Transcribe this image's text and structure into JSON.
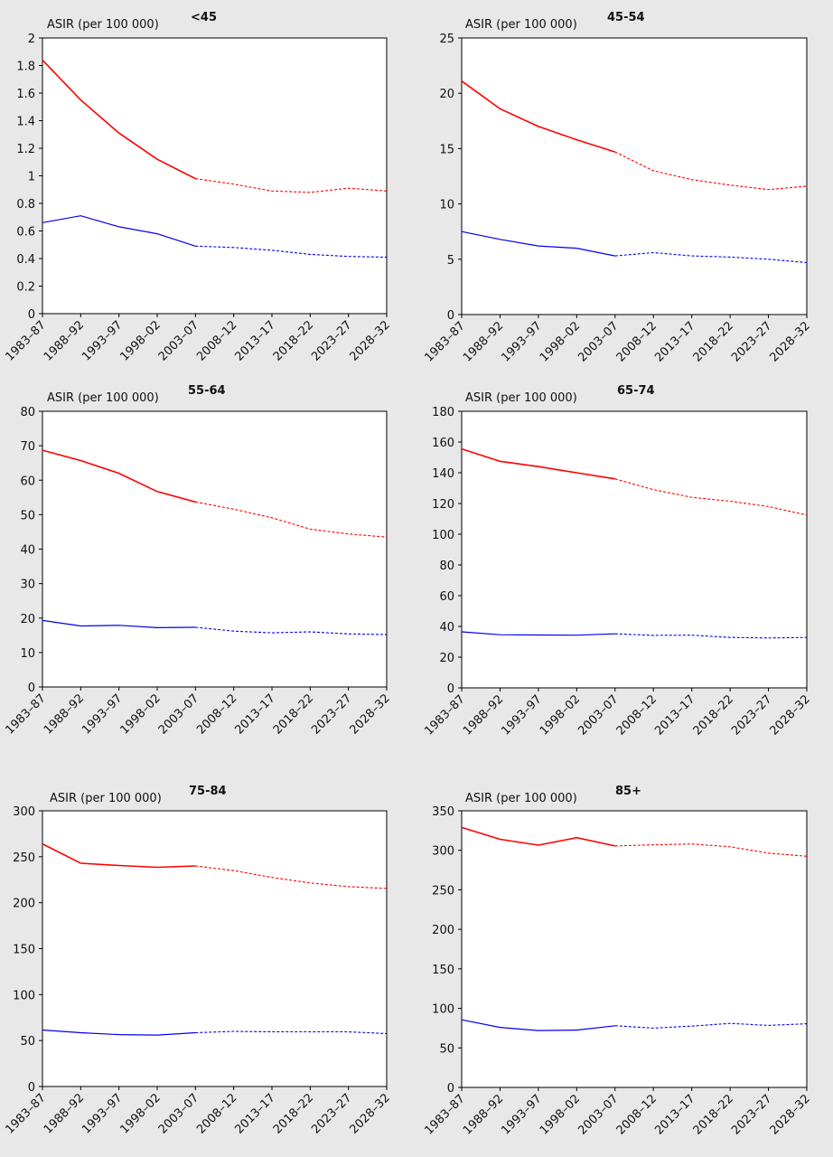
{
  "figure": {
    "background": "#e8e8e8",
    "plot_background": "#ffffff"
  },
  "chart_data": [
    {
      "type": "line",
      "title": "<45",
      "ylabel": "ASIR (per 100 000)",
      "xlabel": "",
      "categories": [
        "1983–87",
        "1988–92",
        "1993–97",
        "1998–02",
        "2003–07",
        "2008–12",
        "2013–17",
        "2018–22",
        "2023–27",
        "2028–32"
      ],
      "ylim": [
        0,
        2
      ],
      "yticks": [
        0,
        0.2,
        0.4,
        0.6,
        0.8,
        1,
        1.2,
        1.4,
        1.6,
        1.8,
        2
      ],
      "yticklabels": [
        "0",
        "0.2",
        "0.4",
        "0.6",
        "0.8",
        "1",
        "1.2",
        "1.4",
        "1.6",
        "1.8",
        "2"
      ],
      "projection_start_index": 4,
      "series": [
        {
          "name": "red",
          "color": "#ff0000",
          "values": [
            1.84,
            1.55,
            1.31,
            1.12,
            0.98,
            0.94,
            0.89,
            0.88,
            0.91,
            0.89
          ]
        },
        {
          "name": "blue",
          "color": "#0000ee",
          "values": [
            0.66,
            0.71,
            0.63,
            0.58,
            0.49,
            0.48,
            0.46,
            0.43,
            0.415,
            0.41
          ]
        }
      ]
    },
    {
      "type": "line",
      "title": "45-54",
      "ylabel": "ASIR (per 100 000)",
      "xlabel": "",
      "categories": [
        "1983–87",
        "1988–92",
        "1993–97",
        "1998–02",
        "2003–07",
        "2008–12",
        "2013–17",
        "2018–22",
        "2023–27",
        "2028–32"
      ],
      "ylim": [
        0,
        25
      ],
      "yticks": [
        0,
        5,
        10,
        15,
        20,
        25
      ],
      "yticklabels": [
        "0",
        "5",
        "10",
        "15",
        "20",
        "25"
      ],
      "projection_start_index": 4,
      "series": [
        {
          "name": "red",
          "color": "#ff0000",
          "values": [
            21.1,
            18.6,
            17.0,
            15.8,
            14.7,
            13.0,
            12.2,
            11.7,
            11.3,
            11.6
          ]
        },
        {
          "name": "blue",
          "color": "#0000ee",
          "values": [
            7.5,
            6.8,
            6.2,
            6.0,
            5.3,
            5.6,
            5.3,
            5.2,
            5.0,
            4.7
          ]
        }
      ]
    },
    {
      "type": "line",
      "title": "55-64",
      "ylabel": "ASIR (per 100 000)",
      "xlabel": "",
      "categories": [
        "1983–87",
        "1988–92",
        "1993–97",
        "1998–02",
        "2003–07",
        "2008–12",
        "2013–17",
        "2018–22",
        "2023–27",
        "2028–32"
      ],
      "ylim": [
        0,
        80
      ],
      "yticks": [
        0,
        10,
        20,
        30,
        40,
        50,
        60,
        70,
        80
      ],
      "yticklabels": [
        "0",
        "10",
        "20",
        "30",
        "40",
        "50",
        "60",
        "70",
        "80"
      ],
      "projection_start_index": 4,
      "series": [
        {
          "name": "red",
          "color": "#ff0000",
          "values": [
            68.7,
            65.7,
            62.0,
            56.7,
            53.7,
            51.6,
            49.1,
            45.8,
            44.4,
            43.5
          ]
        },
        {
          "name": "blue",
          "color": "#0000ee",
          "values": [
            19.3,
            17.7,
            17.9,
            17.2,
            17.3,
            16.2,
            15.7,
            16.0,
            15.4,
            15.2
          ]
        }
      ]
    },
    {
      "type": "line",
      "title": "65-74",
      "ylabel": "ASIR (per 100 000)",
      "xlabel": "",
      "categories": [
        "1983–87",
        "1988–92",
        "1993–97",
        "1998–02",
        "2003–07",
        "2008–12",
        "2013–17",
        "2018–22",
        "2023–27",
        "2028–32"
      ],
      "ylim": [
        0,
        180
      ],
      "yticks": [
        0,
        20,
        40,
        60,
        80,
        100,
        120,
        140,
        160,
        180
      ],
      "yticklabels": [
        "0",
        "20",
        "40",
        "60",
        "80",
        "100",
        "120",
        "140",
        "160",
        "180"
      ],
      "projection_start_index": 4,
      "series": [
        {
          "name": "red",
          "color": "#ff0000",
          "values": [
            155.5,
            147.5,
            144.0,
            140.0,
            136.0,
            129.0,
            124.0,
            121.5,
            118.0,
            112.5
          ]
        },
        {
          "name": "blue",
          "color": "#0000ee",
          "values": [
            36.5,
            34.6,
            34.4,
            34.3,
            35.2,
            34.2,
            34.3,
            32.8,
            32.5,
            32.8
          ]
        }
      ]
    },
    {
      "type": "line",
      "title": "75-84",
      "ylabel": "ASIR (per 100 000)",
      "xlabel": "",
      "categories": [
        "1983–87",
        "1988–92",
        "1993–97",
        "1998–02",
        "2003–07",
        "2008–12",
        "2013–17",
        "2018–22",
        "2023–27",
        "2028–32"
      ],
      "ylim": [
        0,
        300
      ],
      "yticks": [
        0,
        50,
        100,
        150,
        200,
        250,
        300
      ],
      "yticklabels": [
        "0",
        "50",
        "100",
        "150",
        "200",
        "250",
        "300"
      ],
      "projection_start_index": 4,
      "series": [
        {
          "name": "red",
          "color": "#ff0000",
          "values": [
            264,
            243,
            240.5,
            238.5,
            240,
            235,
            227.5,
            221.5,
            217.5,
            215.5
          ]
        },
        {
          "name": "blue",
          "color": "#0000ee",
          "values": [
            61.5,
            58.5,
            56.5,
            56,
            58.5,
            60,
            59.5,
            59.5,
            59.5,
            57.5
          ]
        }
      ]
    },
    {
      "type": "line",
      "title": "85+",
      "ylabel": "ASIR (per 100 000)",
      "xlabel": "",
      "categories": [
        "1983–87",
        "1988–92",
        "1993–97",
        "1998–02",
        "2003–07",
        "2008–12",
        "2013–17",
        "2018–22",
        "2023–27",
        "2028–32"
      ],
      "ylim": [
        0,
        350
      ],
      "yticks": [
        0,
        50,
        100,
        150,
        200,
        250,
        300,
        350
      ],
      "yticklabels": [
        "0",
        "50",
        "100",
        "150",
        "200",
        "250",
        "300",
        "350"
      ],
      "projection_start_index": 4,
      "series": [
        {
          "name": "red",
          "color": "#ff0000",
          "values": [
            329,
            314,
            306.5,
            316,
            305.5,
            307,
            308,
            304.5,
            296.5,
            292.5
          ]
        },
        {
          "name": "blue",
          "color": "#0000ee",
          "values": [
            85.5,
            76,
            72,
            72.5,
            78,
            75,
            77.5,
            81,
            78.5,
            80.5
          ]
        }
      ]
    }
  ]
}
